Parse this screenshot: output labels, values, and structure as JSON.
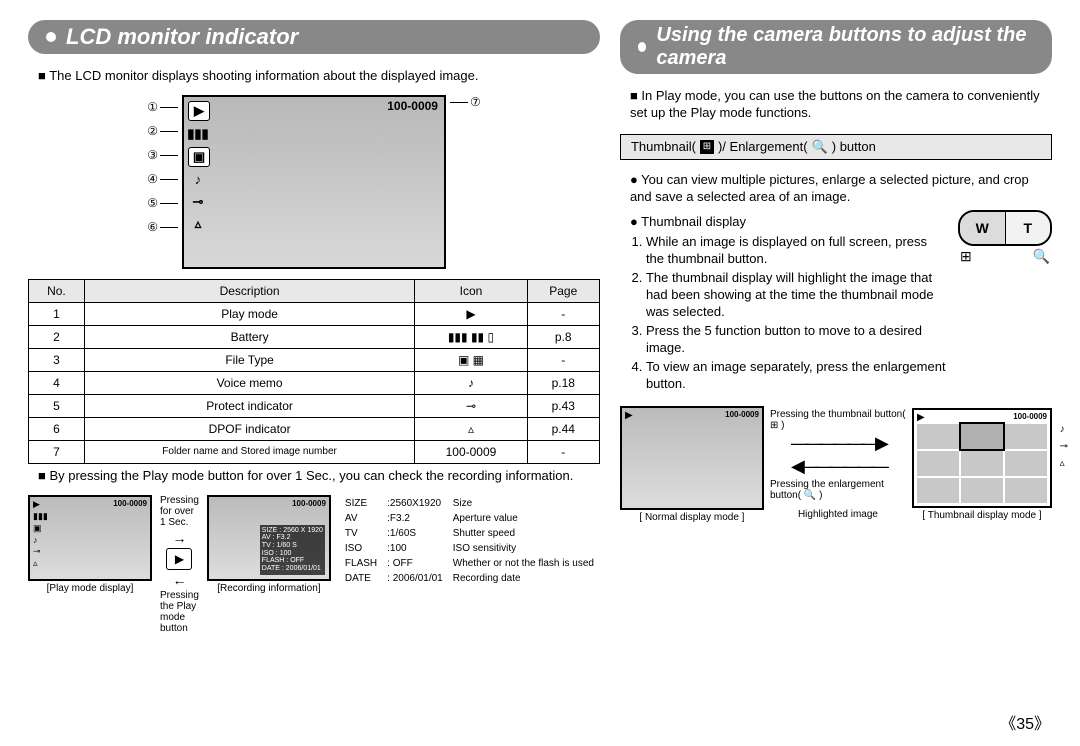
{
  "page_number": "《35》",
  "left": {
    "title": "LCD monitor indicator",
    "intro": "The LCD monitor displays shooting information about the displayed image.",
    "lcd": {
      "file_number": "100-0009",
      "left_callouts": [
        "①",
        "②",
        "③",
        "④",
        "⑤",
        "⑥"
      ],
      "right_callout": "⑦",
      "icons": [
        "▶",
        "▮▮▮",
        "▣",
        "♪",
        "⊸",
        "▵"
      ]
    },
    "table": {
      "headers": [
        "No.",
        "Description",
        "Icon",
        "Page"
      ],
      "rows": [
        {
          "no": "1",
          "desc": "Play mode",
          "icon": "▶",
          "page": "-"
        },
        {
          "no": "2",
          "desc": "Battery",
          "icon": "▮▮▮  ▮▮  ▯",
          "page": "p.8"
        },
        {
          "no": "3",
          "desc": "File Type",
          "icon": "▣   ▦",
          "page": "-"
        },
        {
          "no": "4",
          "desc": "Voice memo",
          "icon": "♪",
          "page": "p.18"
        },
        {
          "no": "5",
          "desc": "Protect indicator",
          "icon": "⊸",
          "page": "p.43"
        },
        {
          "no": "6",
          "desc": "DPOF indicator",
          "icon": "▵",
          "page": "p.44"
        },
        {
          "no": "7",
          "desc": "Folder name and Stored image number",
          "icon": "100-0009",
          "page": "-"
        }
      ]
    },
    "note": "By pressing the Play mode button for over 1 Sec., you can check the recording information.",
    "bottom": {
      "thumb1_caption": "[Play mode display]",
      "thumb2_caption": "[Recording information]",
      "arrow_top": "Pressing for over 1 Sec.",
      "arrow_bottom": "Pressing the Play mode button",
      "rec_lines": [
        "SIZE : 2560 X 1920",
        "AV : F3.2",
        "TV : 1/60 S",
        "ISO : 100",
        "FLASH : OFF",
        "DATE : 2006/01/01"
      ],
      "info_rows": [
        [
          "SIZE",
          ":2560X1920",
          "Size"
        ],
        [
          "AV",
          ":F3.2",
          "Aperture value"
        ],
        [
          "TV",
          ":1/60S",
          "Shutter speed"
        ],
        [
          "ISO",
          ":100",
          "ISO sensitivity"
        ],
        [
          "FLASH",
          ": OFF",
          "Whether or not the flash is used"
        ],
        [
          "DATE",
          ": 2006/01/01",
          "Recording date"
        ]
      ]
    }
  },
  "right": {
    "title": "Using the camera buttons to adjust the camera",
    "intro": "In Play mode, you can use the buttons on the camera to conveniently set up the Play mode functions.",
    "subbar": {
      "prefix": "Thumbnail(",
      "mid": ")/ Enlargement(",
      "suffix": ") button"
    },
    "para": "You can view multiple pictures, enlarge a selected picture, and crop and save a selected area of an image.",
    "sub_heading": "Thumbnail display",
    "steps": [
      "While an image is displayed on full screen, press the thumbnail   button.",
      "The thumbnail display will highlight the image that had been showing at the time the thumbnail mode was selected.",
      "Press the 5 function button to move to a desired image.",
      "To view an image separately, press the enlargement button."
    ],
    "wt": {
      "w": "W",
      "t": "T",
      "left_icon": "⊞",
      "right_icon": "🔍"
    },
    "compare": {
      "file_number": "100-0009",
      "left_caption": "[ Normal display mode ]",
      "mid_top": "Pressing the thumbnail button( ⊞ )",
      "mid_bottom": "Pressing the enlargement button( 🔍 )",
      "mid_caption": "Highlighted image",
      "right_caption": "[ Thumbnail display mode ]"
    }
  }
}
